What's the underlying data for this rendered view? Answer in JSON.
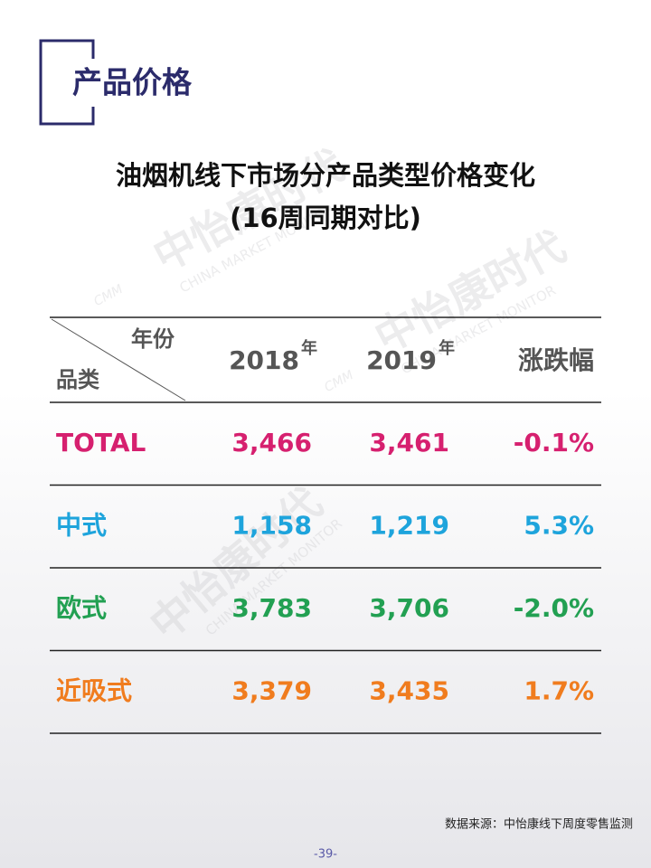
{
  "header": {
    "title": "产品价格"
  },
  "title": {
    "lines": [
      "油烟机线下市场分产品类型价格变化",
      "(16周同期对比)"
    ]
  },
  "watermark": {
    "brand": "中怡康时代",
    "english": "CHINA MARKET MONITOR",
    "logo": "CMM"
  },
  "table": {
    "corner": {
      "column_label": "年份",
      "row_label": "品类"
    },
    "columns": [
      {
        "year": "2018",
        "suffix": "年"
      },
      {
        "year": "2019",
        "suffix": "年"
      },
      {
        "label": "涨跌幅"
      }
    ],
    "rows": [
      {
        "name": "TOTAL",
        "color": "#d6206f",
        "cells": [
          "3,466",
          "3,461",
          "-0.1%"
        ]
      },
      {
        "name": "中式",
        "color": "#1ea4dc",
        "cells": [
          "1,158",
          "1,219",
          "5.3%"
        ]
      },
      {
        "name": "欧式",
        "color": "#22a052",
        "cells": [
          "3,783",
          "3,706",
          "-2.0%"
        ]
      },
      {
        "name": "近吸式",
        "color": "#f07c1e",
        "cells": [
          "3,379",
          "3,435",
          "1.7%"
        ]
      }
    ]
  },
  "footer": {
    "source": "数据来源：中怡康线下周度零售监测",
    "page": "-39-"
  }
}
